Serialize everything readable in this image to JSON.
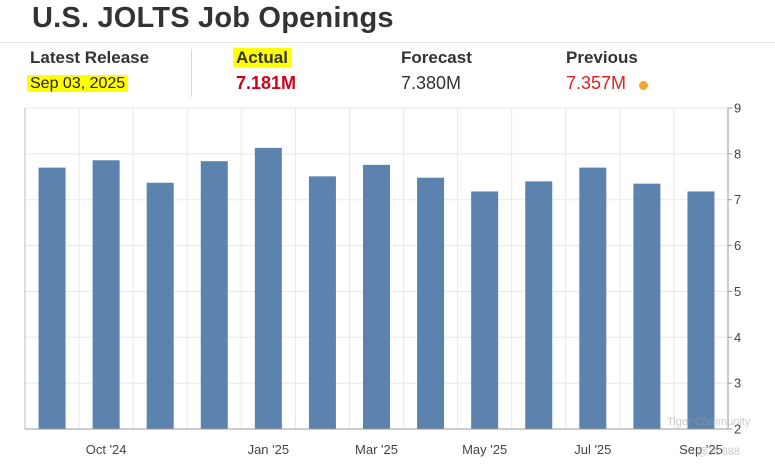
{
  "title": "U.S. JOLTS Job Openings",
  "stats": {
    "latest_release_label": "Latest Release",
    "latest_release_value": "Sep 03, 2025",
    "actual_label": "Actual",
    "actual_value": "7.181M",
    "forecast_label": "Forecast",
    "forecast_value": "7.380M",
    "previous_label": "Previous",
    "previous_value": "7.357M"
  },
  "colors": {
    "bar": "#5b83ae",
    "actual": "#d0021b",
    "previous": "#e02020",
    "highlight": "#ffff00",
    "grid": "#e8e8e8",
    "dot": "#f0a830"
  },
  "watermark": {
    "line1": "Tiger Community",
    "line2": "@JC888"
  },
  "chart_data": {
    "type": "bar",
    "title": "",
    "xlabel": "",
    "ylabel": "",
    "ylim": [
      2,
      9
    ],
    "yticks": [
      2,
      3,
      4,
      5,
      6,
      7,
      8,
      9
    ],
    "grid": true,
    "y_axis_side": "right",
    "x_tick_labels": [
      {
        "index": 1,
        "label": "Oct '24"
      },
      {
        "index": 4,
        "label": "Jan '25"
      },
      {
        "index": 6,
        "label": "Mar '25"
      },
      {
        "index": 8,
        "label": "May '25"
      },
      {
        "index": 10,
        "label": "Jul '25"
      },
      {
        "index": 12,
        "label": "Sep '25"
      }
    ],
    "values": [
      7.7,
      7.86,
      7.37,
      7.84,
      8.13,
      7.51,
      7.76,
      7.48,
      7.18,
      7.4,
      7.7,
      7.35,
      7.18
    ]
  }
}
